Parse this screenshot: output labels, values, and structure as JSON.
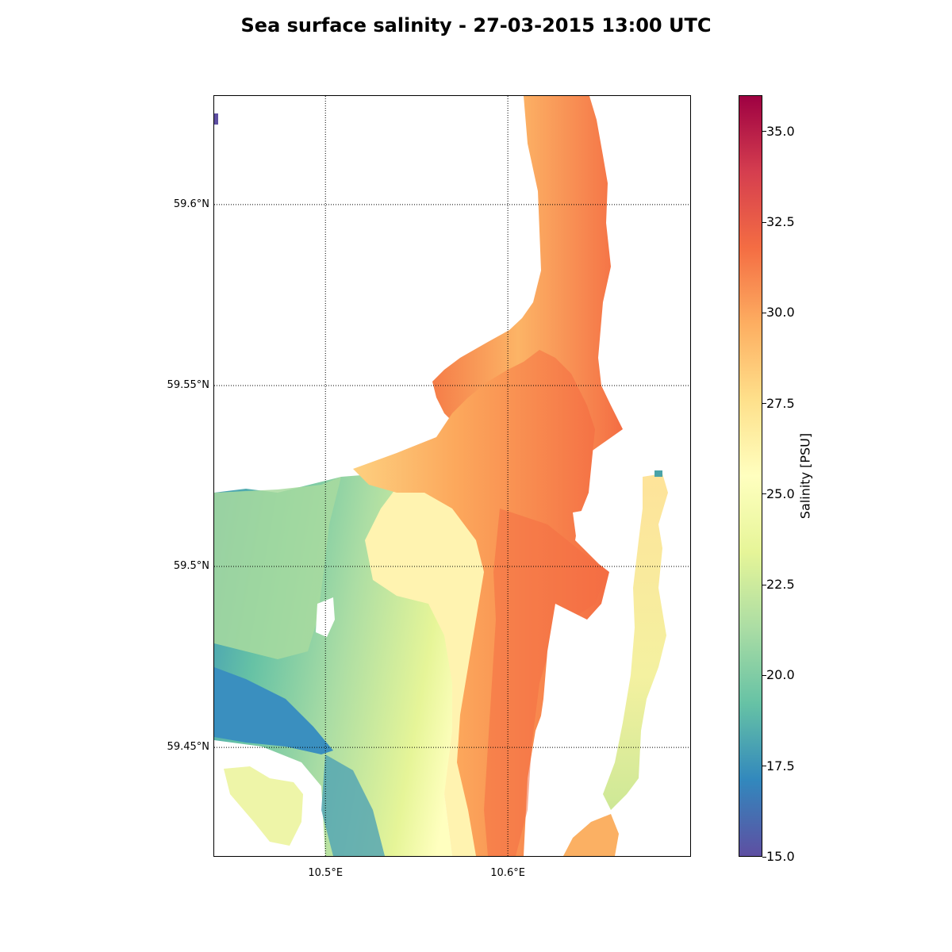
{
  "title": "Sea surface salinity - 27-03-2015 13:00 UTC",
  "map": {
    "lon_range": [
      10.439,
      10.7
    ],
    "lat_range": [
      59.42,
      59.63
    ],
    "lat_ticks": [
      {
        "value": 59.6,
        "label": "59.6°N"
      },
      {
        "value": 59.55,
        "label": "59.55°N"
      },
      {
        "value": 59.5,
        "label": "59.5°N"
      },
      {
        "value": 59.45,
        "label": "59.45°N"
      }
    ],
    "lon_ticks": [
      {
        "value": 10.5,
        "label": "10.5°E"
      },
      {
        "value": 10.6,
        "label": "10.6°E"
      }
    ],
    "grid": "dotted"
  },
  "colorbar": {
    "label": "Salinity [PSU]",
    "range": [
      15.0,
      36.0
    ],
    "ticks": [
      "15.0",
      "17.5",
      "20.0",
      "22.5",
      "25.0",
      "27.5",
      "30.0",
      "32.5",
      "35.0"
    ],
    "tick_values": [
      15.0,
      17.5,
      20.0,
      22.5,
      25.0,
      27.5,
      30.0,
      32.5,
      35.0
    ],
    "colormap": "Spectral_r",
    "colors": [
      "#5e4fa2",
      "#3288bd",
      "#66c2a5",
      "#abdda4",
      "#e6f598",
      "#ffffbf",
      "#fee08b",
      "#fdae61",
      "#f46d43",
      "#d53e4f",
      "#9e0142"
    ]
  }
}
